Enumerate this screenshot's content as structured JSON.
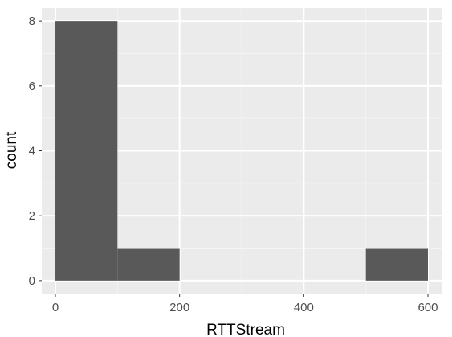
{
  "chart_data": {
    "type": "bar",
    "subtype": "histogram",
    "xlabel": "RTTStream",
    "ylabel": "count",
    "bins": [
      {
        "start": 0,
        "end": 100,
        "count": 8
      },
      {
        "start": 100,
        "end": 200,
        "count": 1
      },
      {
        "start": 200,
        "end": 300,
        "count": 0
      },
      {
        "start": 300,
        "end": 400,
        "count": 0
      },
      {
        "start": 400,
        "end": 500,
        "count": 0
      },
      {
        "start": 500,
        "end": 600,
        "count": 1
      }
    ],
    "xlim": [
      -22,
      622
    ],
    "ylim": [
      -0.4,
      8.4
    ],
    "x_ticks": [
      0,
      200,
      400,
      600
    ],
    "y_ticks": [
      0,
      2,
      4,
      6,
      8
    ],
    "grid": true,
    "legend": "none",
    "colors": {
      "panel_background": "#ebebeb",
      "grid_major": "#ffffff",
      "grid_minor": "#f4f4f4",
      "bar_fill": "#595959",
      "tick_label": "#4d4d4d",
      "axis_title": "#000000"
    }
  }
}
